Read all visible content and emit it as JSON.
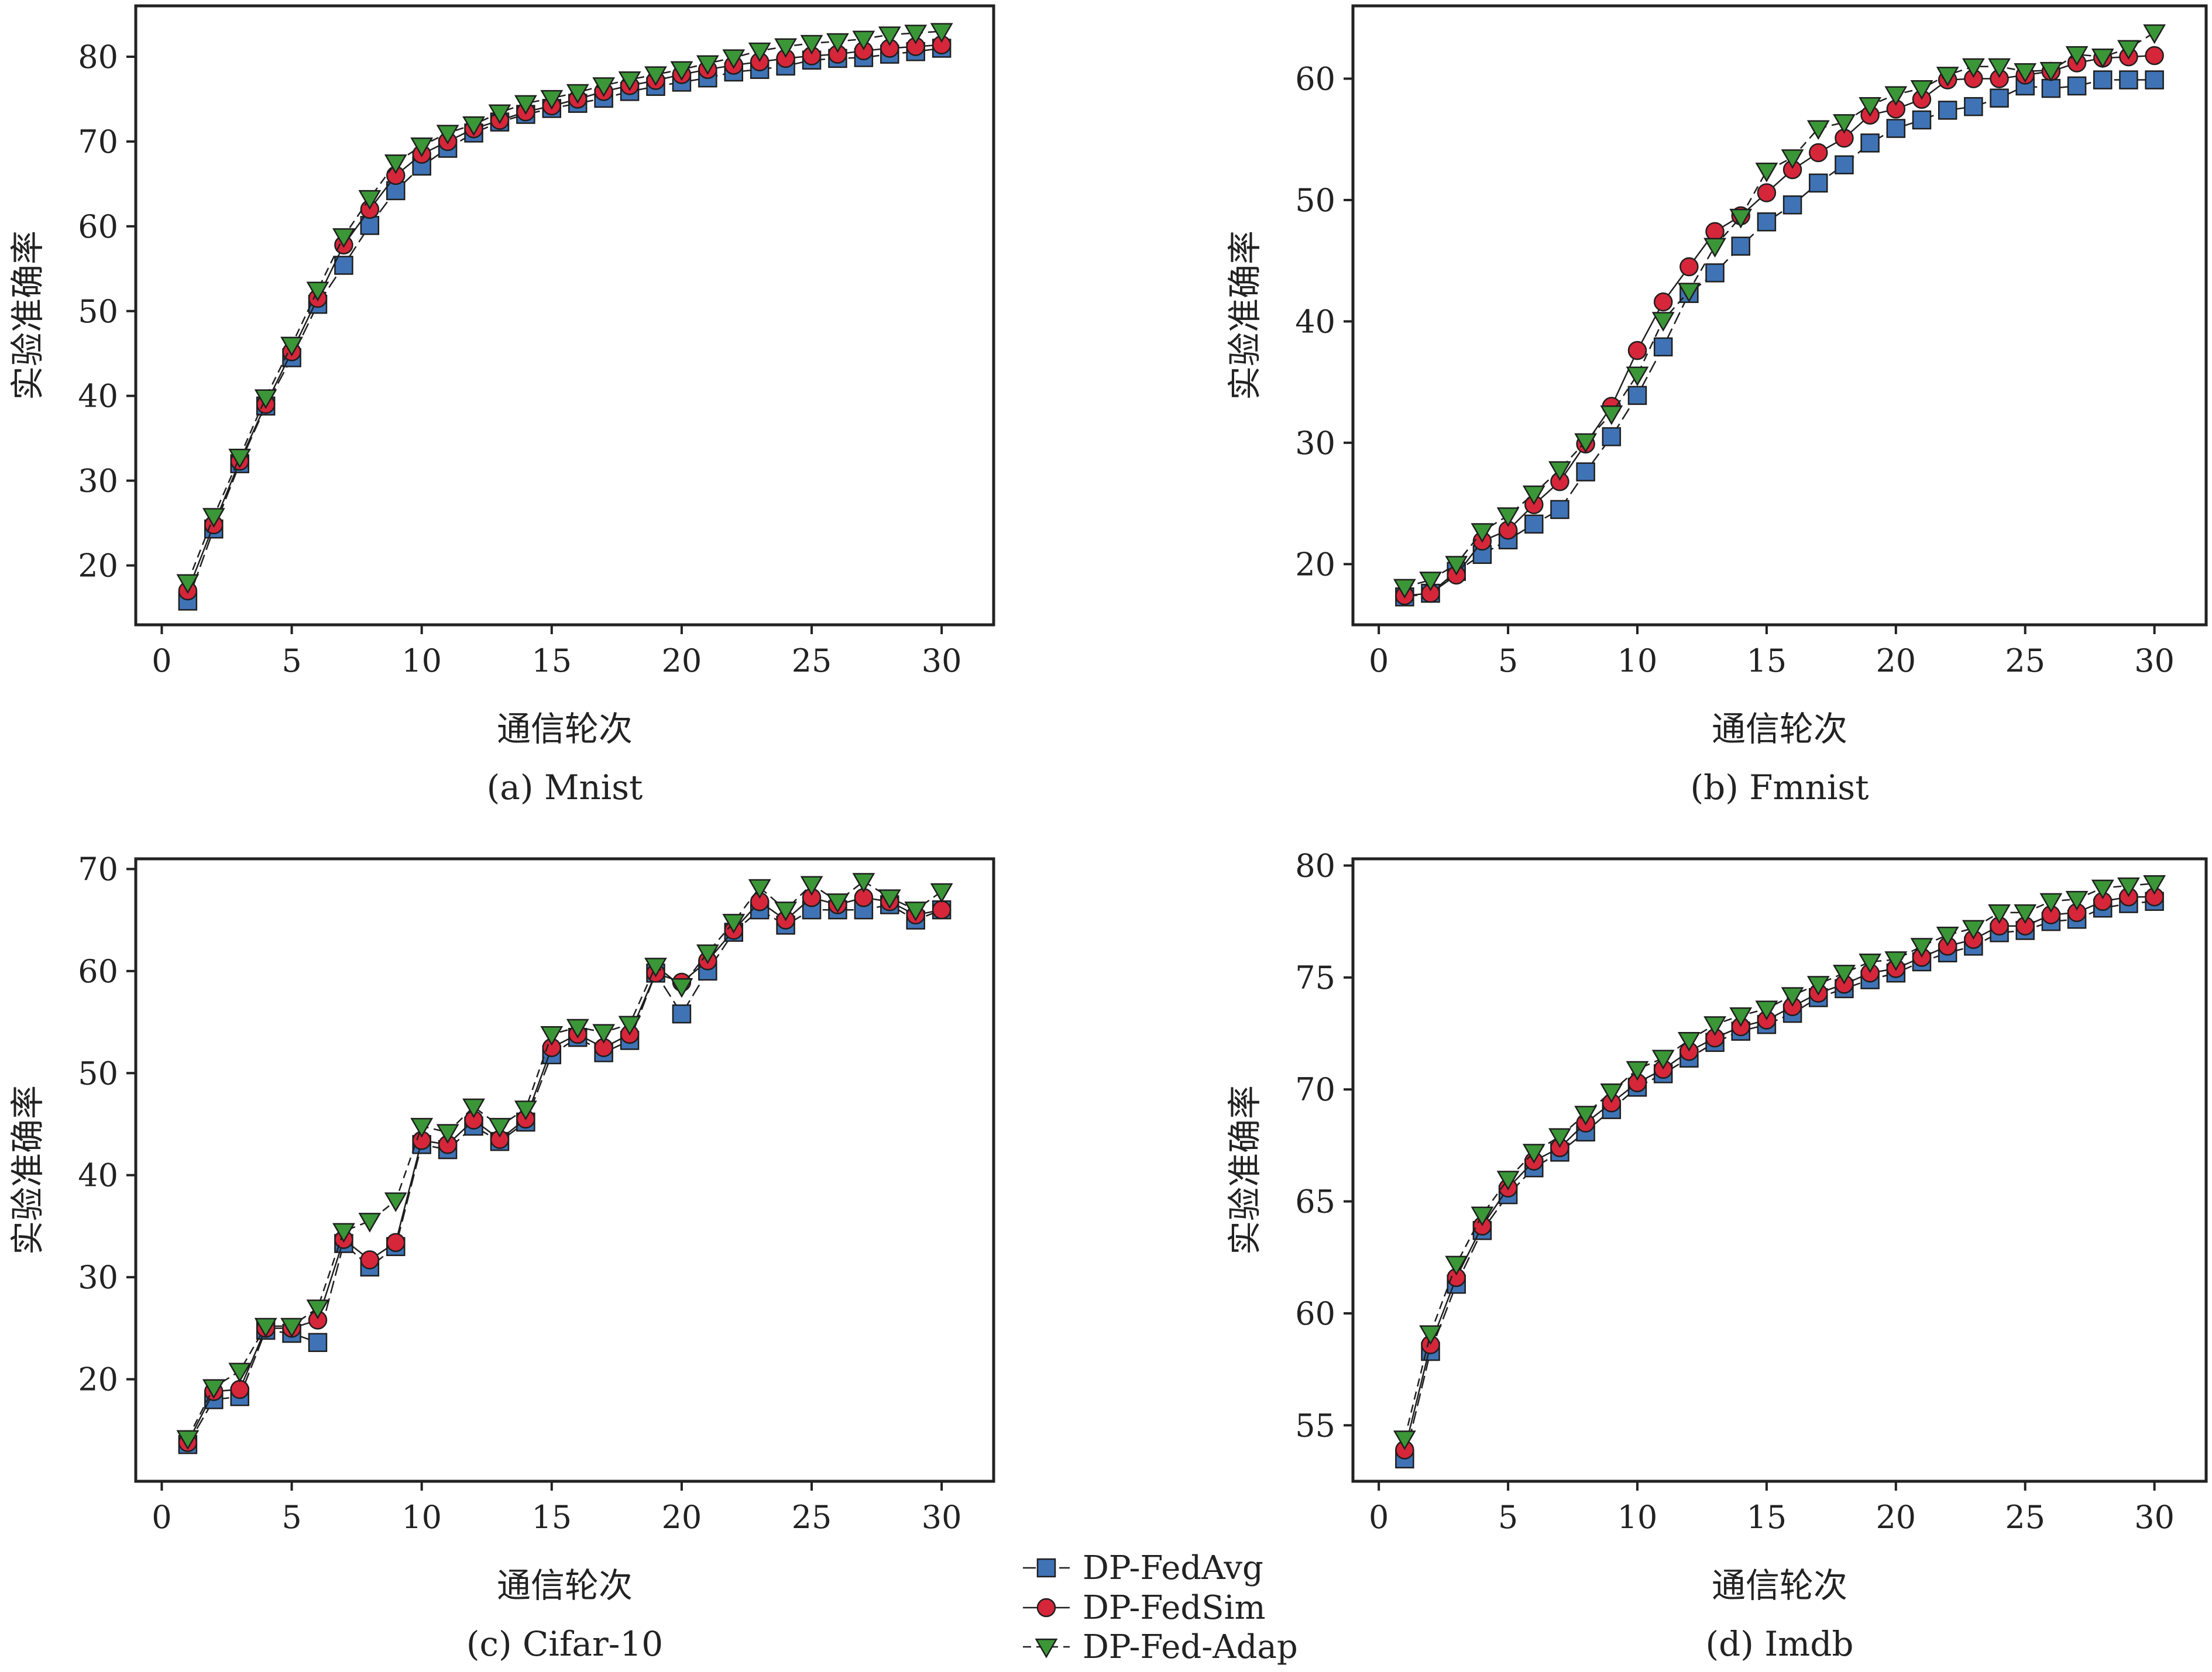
{
  "chart_data": [
    {
      "type": "line",
      "caption": "(a) Mnist",
      "xlabel": "通信轮次",
      "ylabel": "实验准确率",
      "xlim": [
        -1,
        32
      ],
      "ylim": [
        13,
        86
      ],
      "xticks": [
        0,
        5,
        10,
        15,
        20,
        25,
        30
      ],
      "yticks": [
        20,
        30,
        40,
        50,
        60,
        70,
        80
      ],
      "x": [
        1,
        2,
        3,
        4,
        5,
        6,
        7,
        8,
        9,
        10,
        11,
        12,
        13,
        14,
        15,
        16,
        17,
        18,
        19,
        20,
        21,
        22,
        23,
        24,
        25,
        26,
        27,
        28,
        29,
        30
      ],
      "series": [
        {
          "name": "DP-FedAvg",
          "values": [
            15.8,
            24.3,
            32.0,
            38.8,
            44.5,
            50.8,
            55.4,
            60.1,
            64.2,
            67.1,
            69.2,
            71.0,
            72.3,
            73.2,
            73.9,
            74.5,
            75.1,
            75.9,
            76.5,
            77.0,
            77.5,
            78.2,
            78.5,
            78.9,
            79.6,
            79.8,
            79.9,
            80.3,
            80.6,
            81.0
          ]
        },
        {
          "name": "DP-FedSim",
          "values": [
            17.0,
            24.8,
            32.3,
            39.0,
            45.2,
            51.5,
            57.8,
            62.0,
            66.0,
            68.5,
            70.0,
            71.5,
            72.5,
            73.5,
            74.2,
            75.0,
            75.9,
            76.6,
            77.2,
            77.9,
            78.5,
            79.0,
            79.4,
            79.8,
            80.1,
            80.3,
            80.7,
            81.0,
            81.2,
            81.4
          ]
        },
        {
          "name": "DP-Fed-Adap",
          "values": [
            18.0,
            25.8,
            32.8,
            39.8,
            46.0,
            52.5,
            58.8,
            63.3,
            67.5,
            69.5,
            71.0,
            72.0,
            73.4,
            74.5,
            75.1,
            75.8,
            76.6,
            77.3,
            77.9,
            78.5,
            79.2,
            79.9,
            80.7,
            81.2,
            81.6,
            81.8,
            82.1,
            82.6,
            82.8,
            83.0
          ]
        }
      ]
    },
    {
      "type": "line",
      "caption": "(b) Fmnist",
      "xlabel": "通信轮次",
      "ylabel": "实验准确率",
      "xlim": [
        -1,
        32
      ],
      "ylim": [
        15,
        66
      ],
      "xticks": [
        0,
        5,
        10,
        15,
        20,
        25,
        30
      ],
      "yticks": [
        20,
        30,
        40,
        50,
        60
      ],
      "x": [
        1,
        2,
        3,
        4,
        5,
        6,
        7,
        8,
        9,
        10,
        11,
        12,
        13,
        14,
        15,
        16,
        17,
        18,
        19,
        20,
        21,
        22,
        23,
        24,
        25,
        26,
        27,
        28,
        29,
        30
      ],
      "series": [
        {
          "name": "DP-FedAvg",
          "values": [
            17.3,
            17.6,
            19.4,
            20.8,
            22.0,
            23.3,
            24.5,
            27.6,
            30.5,
            33.9,
            37.9,
            42.3,
            44.0,
            46.2,
            48.2,
            49.6,
            51.4,
            52.9,
            54.7,
            55.9,
            56.6,
            57.4,
            57.7,
            58.4,
            59.4,
            59.2,
            59.4,
            59.9,
            59.9,
            59.9
          ]
        },
        {
          "name": "DP-FedSim",
          "values": [
            17.4,
            17.6,
            19.1,
            21.9,
            22.8,
            24.9,
            26.8,
            29.9,
            33.0,
            37.6,
            41.6,
            44.5,
            47.4,
            48.7,
            50.6,
            52.5,
            53.9,
            55.1,
            57.0,
            57.5,
            58.3,
            59.9,
            60.0,
            60.0,
            60.3,
            60.6,
            61.3,
            61.7,
            61.8,
            61.9
          ]
        },
        {
          "name": "DP-Fed-Adap",
          "values": [
            18.1,
            18.7,
            20.0,
            22.7,
            24.0,
            25.8,
            27.8,
            30.1,
            32.4,
            35.6,
            40.1,
            42.5,
            46.2,
            48.6,
            52.4,
            53.5,
            55.9,
            56.4,
            57.8,
            58.7,
            59.2,
            60.3,
            61.0,
            61.0,
            60.6,
            60.7,
            62.0,
            61.8,
            62.5,
            63.8
          ]
        }
      ]
    },
    {
      "type": "line",
      "caption": "(c) Cifar-10",
      "xlabel": "通信轮次",
      "ylabel": "实验准确率",
      "xlim": [
        -1,
        32
      ],
      "ylim": [
        10,
        71
      ],
      "xticks": [
        0,
        5,
        10,
        15,
        20,
        25,
        30
      ],
      "yticks": [
        20,
        30,
        40,
        50,
        60,
        70
      ],
      "x": [
        1,
        2,
        3,
        4,
        5,
        6,
        7,
        8,
        9,
        10,
        11,
        12,
        13,
        14,
        15,
        16,
        17,
        18,
        19,
        20,
        21,
        22,
        23,
        24,
        25,
        26,
        27,
        28,
        29,
        30
      ],
      "series": [
        {
          "name": "DP-FedAvg",
          "values": [
            13.6,
            18.0,
            18.3,
            24.8,
            24.5,
            23.6,
            33.3,
            31.0,
            33.0,
            43.0,
            42.5,
            44.8,
            43.3,
            45.2,
            51.8,
            53.5,
            52.0,
            53.2,
            59.8,
            55.8,
            60.0,
            63.8,
            66.0,
            64.5,
            66.0,
            66.0,
            66.0,
            66.5,
            65.0,
            66.0
          ]
        },
        {
          "name": "DP-FedSim",
          "values": [
            13.8,
            18.8,
            19.0,
            25.0,
            25.0,
            25.8,
            33.7,
            31.7,
            33.4,
            43.4,
            43.0,
            45.4,
            43.5,
            45.5,
            52.5,
            53.8,
            52.5,
            53.8,
            59.8,
            58.9,
            61.0,
            64.0,
            66.8,
            65.0,
            67.2,
            66.5,
            67.2,
            66.8,
            65.5,
            66.0
          ]
        },
        {
          "name": "DP-Fed-Adap",
          "values": [
            14.2,
            19.2,
            20.8,
            25.2,
            25.2,
            27.0,
            34.5,
            35.5,
            37.5,
            44.8,
            44.2,
            46.7,
            44.8,
            46.5,
            53.8,
            54.5,
            54.0,
            54.8,
            60.5,
            58.5,
            61.8,
            64.8,
            68.2,
            66.0,
            68.5,
            66.8,
            68.8,
            67.2,
            66.0,
            67.8
          ]
        }
      ]
    },
    {
      "type": "line",
      "caption": "(d) Imdb",
      "xlabel": "通信轮次",
      "ylabel": "实验准确率",
      "xlim": [
        -1,
        32
      ],
      "ylim": [
        52.5,
        80.3
      ],
      "xticks": [
        0,
        5,
        10,
        15,
        20,
        25,
        30
      ],
      "yticks": [
        55,
        60,
        65,
        70,
        75,
        80
      ],
      "x": [
        1,
        2,
        3,
        4,
        5,
        6,
        7,
        8,
        9,
        10,
        11,
        12,
        13,
        14,
        15,
        16,
        17,
        18,
        19,
        20,
        21,
        22,
        23,
        24,
        25,
        26,
        27,
        28,
        29,
        30
      ],
      "series": [
        {
          "name": "DP-FedAvg",
          "values": [
            53.5,
            58.3,
            61.3,
            63.7,
            65.3,
            66.5,
            67.2,
            68.1,
            69.1,
            70.1,
            70.7,
            71.4,
            72.1,
            72.6,
            72.9,
            73.4,
            74.1,
            74.5,
            74.9,
            75.2,
            75.7,
            76.1,
            76.4,
            77.0,
            77.1,
            77.5,
            77.6,
            78.1,
            78.3,
            78.4
          ]
        },
        {
          "name": "DP-FedSim",
          "values": [
            53.9,
            58.6,
            61.6,
            63.9,
            65.6,
            66.8,
            67.4,
            68.5,
            69.4,
            70.3,
            70.9,
            71.7,
            72.3,
            72.8,
            73.1,
            73.7,
            74.3,
            74.7,
            75.2,
            75.4,
            75.9,
            76.4,
            76.7,
            77.3,
            77.3,
            77.8,
            77.9,
            78.4,
            78.6,
            78.6
          ]
        },
        {
          "name": "DP-Fed-Adap",
          "values": [
            54.4,
            59.1,
            62.2,
            64.4,
            66.0,
            67.2,
            67.9,
            68.9,
            69.9,
            70.9,
            71.4,
            72.2,
            72.9,
            73.3,
            73.6,
            74.2,
            74.7,
            75.2,
            75.7,
            75.8,
            76.4,
            76.9,
            77.2,
            77.9,
            77.9,
            78.4,
            78.5,
            79.0,
            79.1,
            79.2
          ]
        }
      ]
    }
  ],
  "legend": {
    "items": [
      {
        "name": "DP-FedAvg",
        "marker": "square",
        "color": "#3f73b5"
      },
      {
        "name": "DP-FedSim",
        "marker": "circle",
        "color": "#d6263a"
      },
      {
        "name": "DP-Fed-Adap",
        "marker": "triangle-down",
        "color": "#3b9637"
      }
    ]
  }
}
